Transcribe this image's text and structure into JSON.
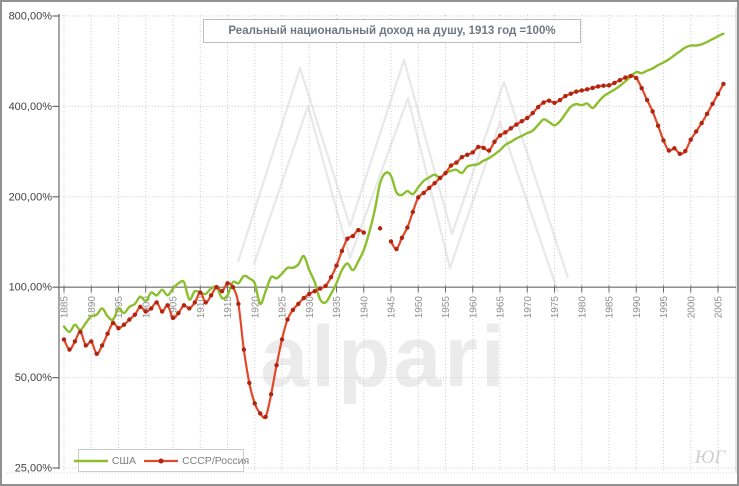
{
  "watermarks": {
    "brand": "alpari",
    "corner": "ЮГ"
  },
  "chart_data": {
    "type": "line",
    "title": "Реальный национальный доход на душу, 1913 год =100%",
    "y_axis": {
      "scale": "log2",
      "unit": "%",
      "range": [
        25,
        800
      ],
      "ticks": [
        {
          "value": 800,
          "label": "800,00%"
        },
        {
          "value": 400,
          "label": "400,00%"
        },
        {
          "value": 200,
          "label": "200,00%"
        },
        {
          "value": 100,
          "label": "100,00%"
        },
        {
          "value": 50,
          "label": "50,00%"
        },
        {
          "value": 25,
          "label": "25,00%"
        }
      ]
    },
    "x_axis": {
      "range": [
        1885,
        2007
      ],
      "tick_years": [
        1885,
        1890,
        1895,
        1900,
        1905,
        1910,
        1915,
        1920,
        1925,
        1930,
        1935,
        1940,
        1945,
        1950,
        1955,
        1960,
        1965,
        1970,
        1975,
        1980,
        1985,
        1990,
        1995,
        2000,
        2005
      ]
    },
    "legend_position": "bottom-left",
    "grid": true,
    "series": [
      {
        "name": "США",
        "color": "#8CBF2E",
        "line_width": 2.4,
        "markers": false,
        "start_year": 1885,
        "values": [
          74,
          71,
          75,
          72,
          76,
          80,
          81,
          85,
          80,
          78,
          85,
          82,
          86,
          88,
          93,
          90,
          96,
          94,
          98,
          94,
          99,
          103,
          104,
          91,
          97,
          96,
          95,
          99,
          100,
          92,
          94,
          104,
          103,
          109,
          107,
          103,
          88,
          97,
          108,
          107,
          111,
          116,
          116,
          119,
          127,
          114,
          104,
          91,
          89,
          95,
          103,
          114,
          120,
          114,
          122,
          133,
          152,
          180,
          222,
          240,
          235,
          207,
          203,
          209,
          204,
          215,
          226,
          232,
          237,
          232,
          240,
          244,
          246,
          240,
          252,
          255,
          257,
          264,
          269,
          277,
          286,
          298,
          305,
          313,
          319,
          326,
          332,
          347,
          362,
          355,
          346,
          357,
          378,
          399,
          407,
          404,
          409,
          395,
          413,
          432,
          444,
          455,
          468,
          485,
          503,
          520,
          516,
          526,
          535,
          549,
          560,
          574,
          592,
          610,
          628,
          638,
          638,
          644,
          656,
          670,
          685,
          698
        ]
      },
      {
        "name": "СССР/Россия",
        "color": "#E1492A",
        "marker_color": "#B02410",
        "line_width": 2.2,
        "markers": true,
        "start_year": 1885,
        "values": [
          67,
          62,
          66,
          71,
          64,
          66,
          60,
          64,
          70,
          76,
          73,
          75,
          78,
          81,
          86,
          83,
          85,
          89,
          83,
          87,
          79,
          82,
          87,
          85,
          89,
          96,
          89,
          94,
          100,
          97,
          103,
          100,
          88,
          62,
          48,
          41,
          38,
          37,
          44,
          55,
          67,
          78,
          84,
          88,
          92,
          95,
          97,
          99,
          101,
          108,
          118,
          132,
          145,
          148,
          155,
          152,
          null,
          null,
          157,
          null,
          142,
          134,
          146,
          158,
          178,
          199,
          206,
          214,
          222,
          231,
          240,
          254,
          260,
          271,
          276,
          281,
          293,
          291,
          285,
          305,
          320,
          328,
          338,
          348,
          357,
          366,
          380,
          398,
          412,
          418,
          411,
          420,
          433,
          441,
          448,
          452,
          456,
          461,
          466,
          469,
          470,
          479,
          489,
          499,
          505,
          497,
          460,
          420,
          385,
          345,
          308,
          285,
          290,
          278,
          284,
          310,
          330,
          352,
          378,
          408,
          440,
          475
        ]
      }
    ]
  }
}
